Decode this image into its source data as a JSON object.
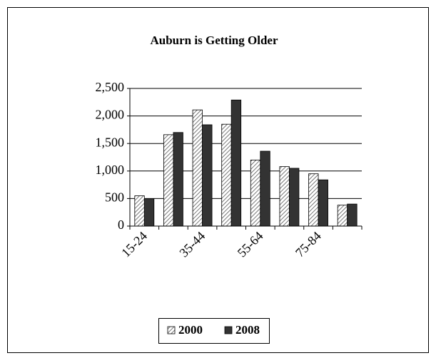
{
  "chart_data": {
    "type": "bar",
    "title": "Auburn is Getting Older",
    "categories": [
      "15-24",
      null,
      "35-44",
      null,
      "55-64",
      null,
      "75-84",
      null
    ],
    "series": [
      {
        "name": "2000",
        "color": "#555555",
        "values": [
          550,
          1660,
          2110,
          1850,
          1200,
          1080,
          950,
          380
        ]
      },
      {
        "name": "2008",
        "color": "#333333",
        "values": [
          500,
          1700,
          1840,
          2290,
          1360,
          1050,
          840,
          400
        ]
      }
    ],
    "ylim": [
      0,
      2500
    ],
    "yticks": [
      0,
      500,
      {
        "value": 1000,
        "label": "1,000"
      },
      {
        "value": 1500,
        "label": "1,500"
      },
      {
        "value": 2000,
        "label": "2,000"
      },
      {
        "value": 2500,
        "label": "2,500"
      }
    ],
    "grid": true,
    "legend": "bottom"
  }
}
